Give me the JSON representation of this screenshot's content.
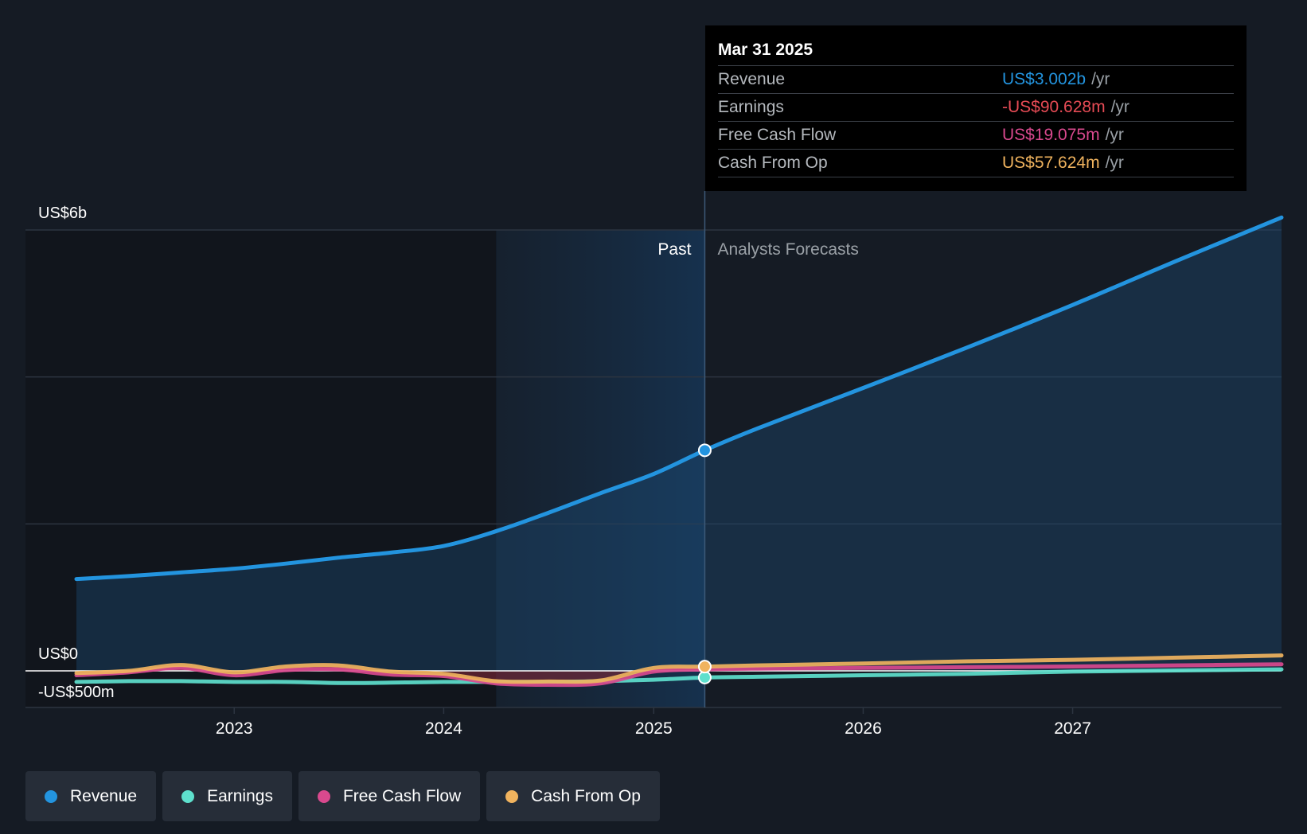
{
  "tooltip": {
    "date": "Mar 31 2025",
    "rows": [
      {
        "label": "Revenue",
        "value": "US$3.002b",
        "unit": "/yr",
        "color": "#2394df"
      },
      {
        "label": "Earnings",
        "value": "-US$90.628m",
        "unit": "/yr",
        "color": "#e64b55"
      },
      {
        "label": "Free Cash Flow",
        "value": "US$19.075m",
        "unit": "/yr",
        "color": "#d9498e"
      },
      {
        "label": "Cash From Op",
        "value": "US$57.624m",
        "unit": "/yr",
        "color": "#f0b35e"
      }
    ]
  },
  "legend": [
    {
      "label": "Revenue",
      "color": "#2394df"
    },
    {
      "label": "Earnings",
      "color": "#5ee0cd"
    },
    {
      "label": "Free Cash Flow",
      "color": "#d9498e"
    },
    {
      "label": "Cash From Op",
      "color": "#f0b35e"
    }
  ],
  "chart_data": {
    "type": "line",
    "y_tick_labels": [
      "US$6b",
      "US$0",
      "-US$500m"
    ],
    "y_ticks": [
      6000,
      0,
      -500
    ],
    "ylim": [
      -500,
      6000
    ],
    "xlim": [
      "2022-04-01",
      "2027-12-31"
    ],
    "x_tick_labels": [
      "2023",
      "2024",
      "2025",
      "2026",
      "2027"
    ],
    "x_ticks": [
      "2023-01-01",
      "2024-01-01",
      "2025-01-01",
      "2026-01-01",
      "2027-01-01"
    ],
    "past_label": "Past",
    "forecast_label": "Analysts Forecasts",
    "past_shade_start": "2024-04-01",
    "divider_date": "2025-03-31",
    "grid": true,
    "series": [
      {
        "name": "Revenue",
        "color": "#2394df",
        "points": [
          [
            "2022-04-01",
            1250
          ],
          [
            "2022-07-01",
            1290
          ],
          [
            "2022-10-01",
            1340
          ],
          [
            "2023-01-01",
            1390
          ],
          [
            "2023-04-01",
            1460
          ],
          [
            "2023-07-01",
            1540
          ],
          [
            "2023-10-01",
            1610
          ],
          [
            "2024-01-01",
            1700
          ],
          [
            "2024-04-01",
            1900
          ],
          [
            "2024-07-01",
            2150
          ],
          [
            "2024-10-01",
            2420
          ],
          [
            "2025-01-01",
            2680
          ],
          [
            "2025-03-31",
            3002
          ],
          [
            "2025-07-01",
            3300
          ],
          [
            "2026-01-01",
            3850
          ],
          [
            "2026-07-01",
            4400
          ],
          [
            "2027-01-01",
            4980
          ],
          [
            "2027-07-01",
            5580
          ],
          [
            "2027-12-31",
            6170
          ]
        ]
      },
      {
        "name": "Earnings",
        "color": "#5ee0cd",
        "points": [
          [
            "2022-04-01",
            -150
          ],
          [
            "2022-07-01",
            -140
          ],
          [
            "2022-10-01",
            -140
          ],
          [
            "2023-01-01",
            -150
          ],
          [
            "2023-04-01",
            -150
          ],
          [
            "2023-07-01",
            -165
          ],
          [
            "2023-10-01",
            -160
          ],
          [
            "2024-01-01",
            -150
          ],
          [
            "2024-04-01",
            -150
          ],
          [
            "2024-07-01",
            -150
          ],
          [
            "2024-10-01",
            -140
          ],
          [
            "2025-01-01",
            -120
          ],
          [
            "2025-03-31",
            -90.6
          ],
          [
            "2025-07-01",
            -80
          ],
          [
            "2026-01-01",
            -60
          ],
          [
            "2026-07-01",
            -40
          ],
          [
            "2027-01-01",
            -10
          ],
          [
            "2027-07-01",
            5
          ],
          [
            "2027-12-31",
            20
          ]
        ]
      },
      {
        "name": "Free Cash Flow",
        "color": "#d9498e",
        "points": [
          [
            "2022-04-01",
            -60
          ],
          [
            "2022-07-01",
            -20
          ],
          [
            "2022-10-01",
            40
          ],
          [
            "2023-01-01",
            -60
          ],
          [
            "2023-04-01",
            10
          ],
          [
            "2023-07-01",
            20
          ],
          [
            "2023-10-01",
            -50
          ],
          [
            "2024-01-01",
            -70
          ],
          [
            "2024-04-01",
            -170
          ],
          [
            "2024-07-01",
            -190
          ],
          [
            "2024-10-01",
            -170
          ],
          [
            "2025-01-01",
            -10
          ],
          [
            "2025-03-31",
            19
          ],
          [
            "2025-07-01",
            30
          ],
          [
            "2026-01-01",
            40
          ],
          [
            "2026-07-01",
            50
          ],
          [
            "2027-01-01",
            60
          ],
          [
            "2027-07-01",
            75
          ],
          [
            "2027-12-31",
            90
          ]
        ]
      },
      {
        "name": "Cash From Op",
        "color": "#f0b35e",
        "points": [
          [
            "2022-04-01",
            -30
          ],
          [
            "2022-07-01",
            0
          ],
          [
            "2022-10-01",
            80
          ],
          [
            "2023-01-01",
            -20
          ],
          [
            "2023-04-01",
            60
          ],
          [
            "2023-07-01",
            75
          ],
          [
            "2023-10-01",
            -10
          ],
          [
            "2024-01-01",
            -40
          ],
          [
            "2024-04-01",
            -140
          ],
          [
            "2024-07-01",
            -145
          ],
          [
            "2024-10-01",
            -130
          ],
          [
            "2025-01-01",
            40
          ],
          [
            "2025-03-31",
            57.6
          ],
          [
            "2025-07-01",
            75
          ],
          [
            "2026-01-01",
            100
          ],
          [
            "2026-07-01",
            130
          ],
          [
            "2027-01-01",
            150
          ],
          [
            "2027-07-01",
            180
          ],
          [
            "2027-12-31",
            210
          ]
        ]
      }
    ]
  }
}
